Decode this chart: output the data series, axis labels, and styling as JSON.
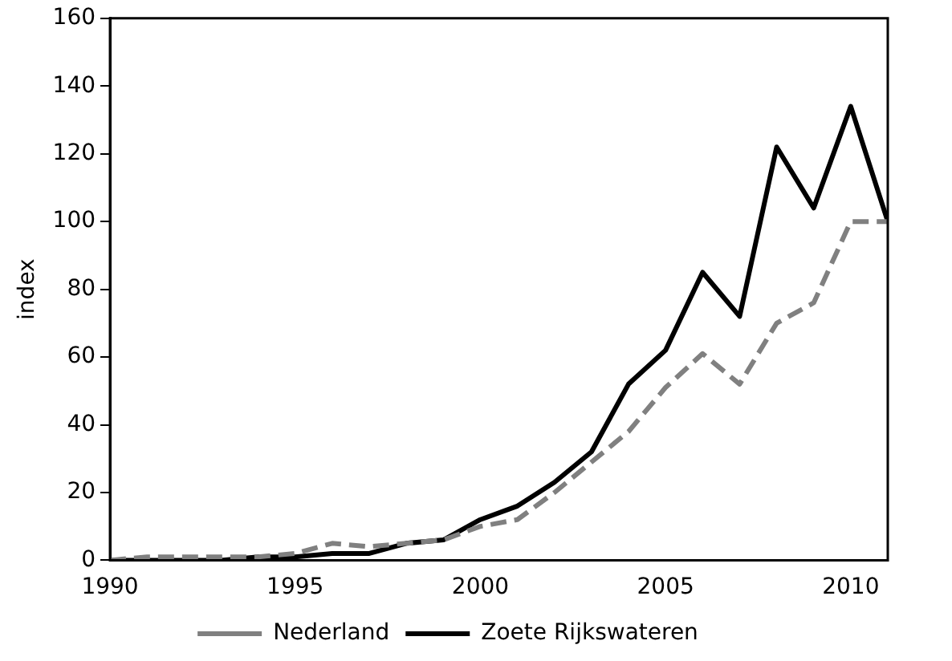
{
  "chart_data": {
    "type": "line",
    "ylabel": "index",
    "x": [
      1990,
      1991,
      1992,
      1993,
      1994,
      1995,
      1996,
      1997,
      1998,
      1999,
      2000,
      2001,
      2002,
      2003,
      2004,
      2005,
      2006,
      2007,
      2008,
      2009,
      2010,
      2011
    ],
    "series": [
      {
        "name": "Nederland",
        "color": "#808080",
        "line_style": "dashed",
        "values": [
          0,
          1,
          1,
          1,
          1,
          2,
          5,
          4,
          5,
          6,
          10,
          12,
          20,
          29,
          38,
          51,
          61,
          52,
          70,
          76,
          100,
          100
        ]
      },
      {
        "name": "Zoete Rijkswateren",
        "color": "#000000",
        "line_style": "solid",
        "values": [
          0,
          0,
          0,
          0,
          1,
          1,
          2,
          2,
          5,
          6,
          12,
          16,
          23,
          32,
          52,
          62,
          85,
          72,
          122,
          104,
          134,
          100
        ]
      }
    ],
    "xlim": [
      1990,
      2011
    ],
    "xticks": [
      1990,
      1995,
      2000,
      2005,
      2010
    ],
    "ylim": [
      0,
      160
    ],
    "yticks": [
      0,
      20,
      40,
      60,
      80,
      100,
      120,
      140,
      160
    ],
    "grid": false,
    "legend": "bottom",
    "marker": "none"
  }
}
